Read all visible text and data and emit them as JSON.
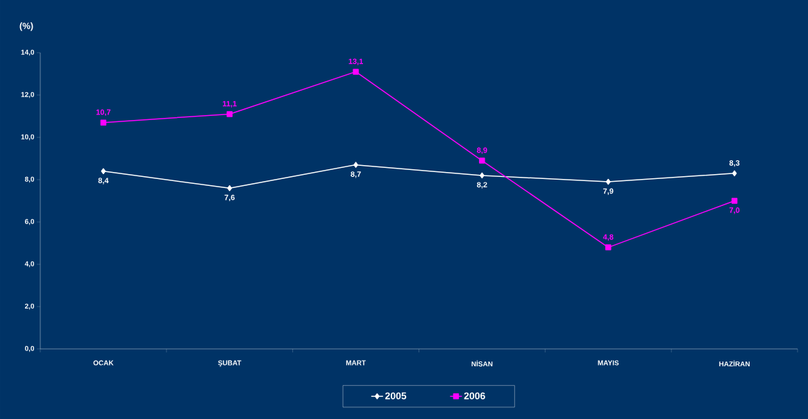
{
  "chart_data": {
    "type": "line",
    "ylabel": "(%)",
    "categories": [
      "OCAK",
      "ŞUBAT",
      "MART",
      "NİSAN",
      "MAYIS",
      "HAZİRAN"
    ],
    "series": [
      {
        "name": "2005",
        "color": "#ffffff",
        "marker": "diamond",
        "values": [
          8.4,
          7.6,
          8.7,
          8.2,
          7.9,
          8.3
        ],
        "value_labels": [
          "8,4",
          "7,6",
          "8,7",
          "8,2",
          "7,9",
          "8,3"
        ]
      },
      {
        "name": "2006",
        "color": "#ff00ff",
        "marker": "square",
        "values": [
          10.7,
          11.1,
          13.1,
          8.9,
          4.8,
          7.0
        ],
        "value_labels": [
          "10,7",
          "11,1",
          "13,1",
          "8,9",
          "4,8",
          "7,0"
        ]
      }
    ],
    "ylim": [
      0,
      14
    ],
    "yticks": [
      {
        "value": 0,
        "label": "0,0"
      },
      {
        "value": 2,
        "label": "2,0"
      },
      {
        "value": 4,
        "label": "4,0"
      },
      {
        "value": 6,
        "label": "6,0"
      },
      {
        "value": 8,
        "label": "8,0"
      },
      {
        "value": 10,
        "label": "10,0"
      },
      {
        "value": 12,
        "label": "12,0"
      },
      {
        "value": 14,
        "label": "14,0"
      }
    ],
    "grid": false,
    "legend": "bottom",
    "line_style": "solid"
  }
}
